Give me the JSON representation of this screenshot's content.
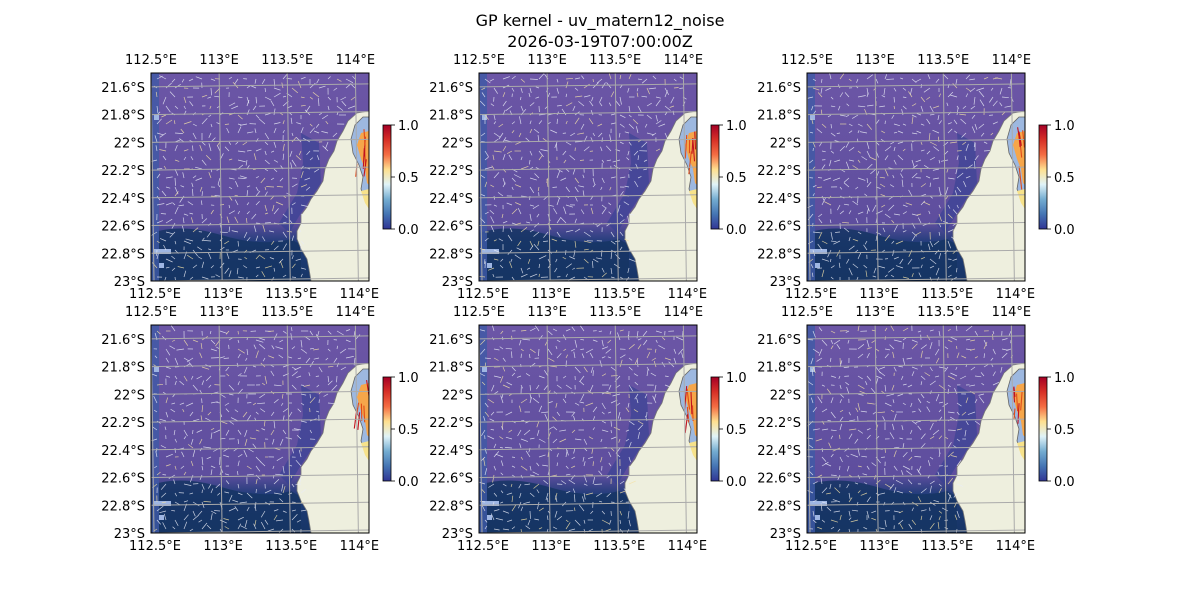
{
  "figure": {
    "title_line1": "GP kernel - uv_matern12_noise",
    "title_line2": "2026-03-19T07:00:00Z"
  },
  "map": {
    "lon_range": [
      112.5,
      114.1
    ],
    "lat_range": [
      -23.0,
      -21.5
    ],
    "lon_gridlines": [
      112.5,
      113.0,
      113.5,
      114.0
    ],
    "lat_gridlines": [
      -21.6,
      -21.8,
      -22.0,
      -22.2,
      -22.4,
      -22.6,
      -22.8,
      -23.0
    ],
    "lon_tick_labels": [
      "112.5°E",
      "113°E",
      "113.5°E",
      "114°E"
    ],
    "lat_tick_labels": [
      "21.6°S",
      "21.8°S",
      "22°S",
      "22.2°S",
      "22.4°S",
      "22.6°S",
      "22.8°S",
      "23°S"
    ],
    "land_color": "#eeefde",
    "ocean_color": "#6c56a6",
    "deep_color": "#1e3c78",
    "grid_color": "#aaaaaa"
  },
  "colorbar": {
    "ticks": [
      "0.0",
      "0.5",
      "1.0"
    ],
    "colormap": "RdYlBu_r",
    "stops": [
      "#313695",
      "#4575b4",
      "#74add1",
      "#e0f3f8",
      "#fee090",
      "#f46d43",
      "#d73027",
      "#a50026"
    ]
  },
  "panels": [
    {
      "name": "panel-1"
    },
    {
      "name": "panel-2"
    },
    {
      "name": "panel-3"
    },
    {
      "name": "panel-4"
    },
    {
      "name": "panel-5"
    },
    {
      "name": "panel-6"
    }
  ]
}
